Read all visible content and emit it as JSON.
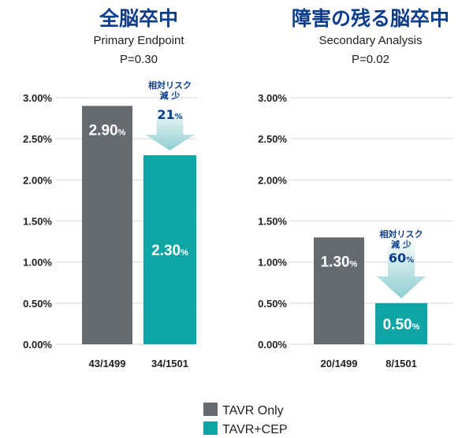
{
  "chart_data": [
    {
      "type": "bar",
      "title": "全脳卒中",
      "subtitle": "Primary Endpoint",
      "p_value": "P=0.30",
      "categories": [
        "43/1499",
        "34/1501"
      ],
      "values": [
        2.9,
        2.3
      ],
      "value_labels": [
        "2.90",
        "2.30"
      ],
      "series_names": [
        "TAVR Only",
        "TAVR+CEP"
      ],
      "ylim": [
        0,
        3.0
      ],
      "yticks": [
        "0.00%",
        "0.50%",
        "1.00%",
        "1.50%",
        "2.00%",
        "2.50%",
        "3.00%"
      ],
      "annotation": {
        "line1": "相対リスク",
        "line2": "減 少",
        "value": "21"
      }
    },
    {
      "type": "bar",
      "title": "障害の残る脳卒中",
      "subtitle": "Secondary Analysis",
      "p_value": "P=0.02",
      "categories": [
        "20/1499",
        "8/1501"
      ],
      "values": [
        1.3,
        0.5
      ],
      "value_labels": [
        "1.30",
        "0.50"
      ],
      "series_names": [
        "TAVR Only",
        "TAVR+CEP"
      ],
      "ylim": [
        0,
        3.0
      ],
      "yticks": [
        "0.00%",
        "0.50%",
        "1.00%",
        "1.50%",
        "2.00%",
        "2.50%",
        "3.00%"
      ],
      "annotation": {
        "line1": "相対リスク",
        "line2": "減 少",
        "value": "60"
      }
    }
  ],
  "percent_sign": "%",
  "legend": [
    {
      "label": "TAVR Only",
      "color": "#666a6e"
    },
    {
      "label": "TAVR+CEP",
      "color": "#0fa5a5"
    }
  ],
  "colors": {
    "title": "#0b3d8c",
    "grid": "#dde3e8",
    "arrow_top": "#e6f4f5",
    "arrow_bottom": "#9fd3d6"
  }
}
